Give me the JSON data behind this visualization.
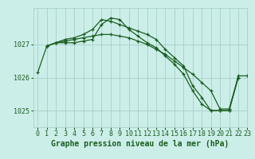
{
  "title": "Graphe pression niveau de la mer (hPa)",
  "bg_color": "#cceee8",
  "grid_color": "#aad4cc",
  "line_color": "#1a5e20",
  "xlim": [
    -0.5,
    23
  ],
  "ylim": [
    1024.5,
    1028.1
  ],
  "yticks": [
    1025,
    1026,
    1027
  ],
  "xticks": [
    0,
    1,
    2,
    3,
    4,
    5,
    6,
    7,
    8,
    9,
    10,
    11,
    12,
    13,
    14,
    15,
    16,
    17,
    18,
    19,
    20,
    21,
    22,
    23
  ],
  "series": [
    {
      "x": [
        0,
        1,
        2,
        3,
        4,
        5,
        6,
        7,
        8,
        9,
        10,
        11,
        12,
        13,
        14,
        15,
        16,
        17,
        18,
        19,
        20,
        21,
        22
      ],
      "y": [
        1026.15,
        1026.95,
        1027.05,
        1027.1,
        1027.15,
        1027.2,
        1027.25,
        1027.3,
        1027.3,
        1027.25,
        1027.2,
        1027.1,
        1027.0,
        1026.85,
        1026.7,
        1026.5,
        1026.3,
        1026.1,
        1025.85,
        1025.6,
        1025.05,
        1025.05,
        1026.0
      ]
    },
    {
      "x": [
        1,
        2,
        3,
        4,
        5,
        6,
        7,
        8,
        9,
        10,
        11,
        12,
        13,
        14,
        15,
        16,
        17,
        18,
        19,
        20,
        21,
        22
      ],
      "y": [
        1026.95,
        1027.05,
        1027.15,
        1027.2,
        1027.3,
        1027.45,
        1027.75,
        1027.7,
        1027.6,
        1027.5,
        1027.4,
        1027.3,
        1027.15,
        1026.85,
        1026.6,
        1026.35,
        1025.75,
        1025.4,
        1025.0,
        1025.0,
        1025.0,
        1026.0
      ]
    },
    {
      "x": [
        1,
        2,
        3,
        4,
        5,
        6,
        7,
        8,
        9,
        10,
        11,
        12,
        13,
        14,
        15,
        16,
        17,
        18,
        19,
        20,
        21,
        22,
        23
      ],
      "y": [
        1026.95,
        1027.05,
        1027.05,
        1027.05,
        1027.1,
        1027.15,
        1027.6,
        1027.8,
        1027.75,
        1027.45,
        1027.25,
        1027.05,
        1026.9,
        1026.65,
        1026.4,
        1026.1,
        1025.6,
        1025.2,
        1025.0,
        1025.0,
        1025.0,
        1026.05,
        1026.05
      ]
    }
  ],
  "xlabel_fontsize": 7,
  "tick_fontsize": 6,
  "figsize": [
    3.2,
    2.0
  ],
  "dpi": 100
}
